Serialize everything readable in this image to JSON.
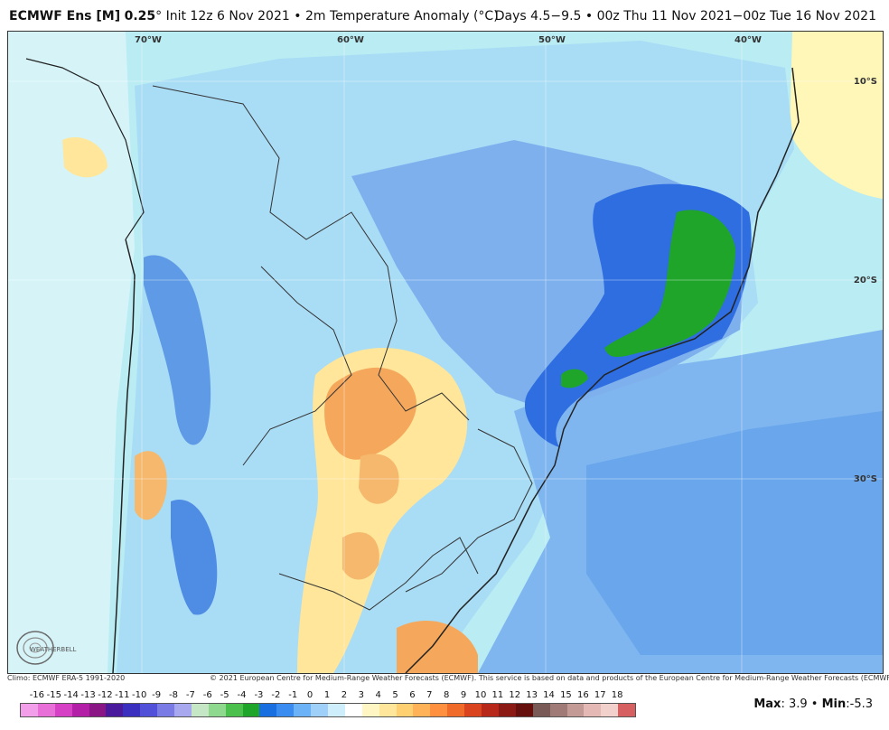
{
  "header": {
    "model": "ECMWF Ens [M]",
    "resolution": "0.25",
    "degree": "°",
    "init": "Init 12z 6 Nov 2021",
    "bullet": "•",
    "variable": "2m Temperature Anomaly (°C)",
    "valid": "Days 4.5−9.5 • 00z Thu 11 Nov 2021−00z Tue 16 Nov 2021"
  },
  "map": {
    "lon_labels": [
      "70°W",
      "60°W",
      "50°W",
      "40°W"
    ],
    "lat_labels": [
      "10°S",
      "20°S",
      "30°S"
    ],
    "logo_text": "WEATHERBELL"
  },
  "footer": {
    "climo": "Climo: ECMWF ERA-5 1991-2020",
    "copyright": "© 2021 European Centre for Medium-Range Weather Forecasts (ECMWF). This service is based on data and products of the European Centre for Medium-Range Weather Forecasts (ECMWF)."
  },
  "scale": {
    "labels": [
      "-16",
      "-15",
      "-14",
      "-13",
      "-12",
      "-11",
      "-10",
      "-9",
      "-8",
      "-7",
      "-6",
      "-5",
      "-4",
      "-3",
      "-2",
      "-1",
      "0",
      "1",
      "2",
      "3",
      "4",
      "5",
      "6",
      "7",
      "8",
      "9",
      "10",
      "11",
      "12",
      "13",
      "14",
      "15",
      "16",
      "17",
      "18"
    ],
    "colors": [
      "#f29ee8",
      "#e86fd8",
      "#d640c4",
      "#b41fa8",
      "#8a1585",
      "#4a1a9c",
      "#3b2fbf",
      "#5050d8",
      "#7b7be6",
      "#a8a8ef",
      "#c6e7c6",
      "#8fd98f",
      "#4cc04c",
      "#1fa52a",
      "#1a6fe0",
      "#3b8cf0",
      "#6cb2f7",
      "#9ed0fa",
      "#cdeefa",
      "#ffffff",
      "#fff6c4",
      "#ffe69a",
      "#ffd071",
      "#ffb257",
      "#ff9040",
      "#f06a2a",
      "#d9441e",
      "#b8281a",
      "#8c1a14",
      "#66100e",
      "#7a5a56",
      "#a07a76",
      "#c49a96",
      "#e4b8b4",
      "#f2d0cc",
      "#d66060"
    ],
    "max_label": "Max",
    "max_value": "3.9",
    "min_label": "Min",
    "min_value": "-5.3"
  },
  "colors": {
    "background_ocean": "#b9ecf3",
    "warm_anomaly": "#f5a85c",
    "cold_anomaly": "#2e6ee0",
    "strong_cold": "#1fa52a"
  }
}
